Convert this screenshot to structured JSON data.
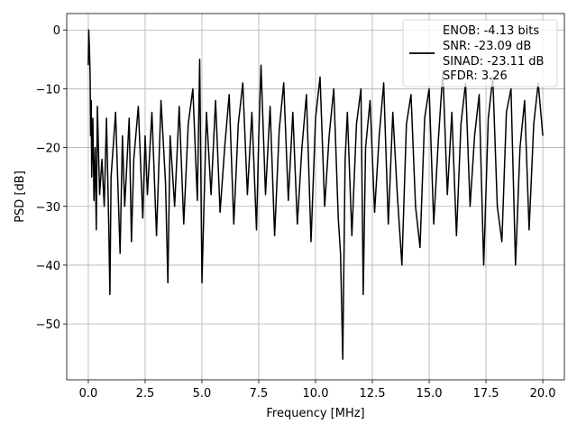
{
  "chart_data": {
    "type": "line",
    "title": "",
    "xlabel": "Frequency [MHz]",
    "ylabel": "PSD [dB]",
    "xlim": [
      -0.95,
      20.95
    ],
    "ylim": [
      -59.5,
      2.8
    ],
    "xticks": [
      0.0,
      2.5,
      5.0,
      7.5,
      10.0,
      12.5,
      15.0,
      17.5,
      20.0
    ],
    "xtick_labels": [
      "0.0",
      "2.5",
      "5.0",
      "7.5",
      "10.0",
      "12.5",
      "15.0",
      "17.5",
      "20.0"
    ],
    "yticks": [
      0,
      -10,
      -20,
      -30,
      -40,
      -50
    ],
    "ytick_labels": [
      "0",
      "−10",
      "−20",
      "−30",
      "−40",
      "−50"
    ],
    "grid": true,
    "legend": {
      "placement": "top-right",
      "entries": [
        "ENOB: -4.13 bits",
        "SNR: -23.09 dB",
        "SINAD: -23.11 dB",
        "SFDR: 3.26"
      ]
    },
    "series": [
      {
        "color": "#000000",
        "points_description_free": true,
        "x": [
          0.0,
          0.02,
          0.05,
          0.08,
          0.1,
          0.13,
          0.15,
          0.2,
          0.25,
          0.3,
          0.35,
          0.4,
          0.5,
          0.6,
          0.7,
          0.8,
          0.9,
          0.95,
          1.0,
          1.2,
          1.4,
          1.5,
          1.6,
          1.8,
          1.9,
          2.0,
          2.2,
          2.4,
          2.5,
          2.6,
          2.8,
          3.0,
          3.2,
          3.4,
          3.5,
          3.6,
          3.8,
          4.0,
          4.2,
          4.4,
          4.6,
          4.8,
          4.9,
          5.0,
          5.2,
          5.4,
          5.6,
          5.8,
          6.0,
          6.2,
          6.4,
          6.6,
          6.8,
          7.0,
          7.2,
          7.4,
          7.5,
          7.6,
          7.8,
          8.0,
          8.2,
          8.4,
          8.6,
          8.8,
          9.0,
          9.2,
          9.4,
          9.6,
          9.8,
          10.0,
          10.2,
          10.4,
          10.6,
          10.8,
          11.0,
          11.1,
          11.2,
          11.3,
          11.4,
          11.6,
          11.8,
          12.0,
          12.1,
          12.2,
          12.4,
          12.6,
          12.8,
          13.0,
          13.2,
          13.4,
          13.6,
          13.8,
          14.0,
          14.2,
          14.4,
          14.6,
          14.8,
          15.0,
          15.2,
          15.4,
          15.6,
          15.8,
          16.0,
          16.2,
          16.4,
          16.6,
          16.8,
          17.0,
          17.2,
          17.4,
          17.6,
          17.8,
          18.0,
          18.2,
          18.4,
          18.6,
          18.8,
          19.0,
          19.2,
          19.4,
          19.6,
          19.8,
          20.0
        ],
        "y": [
          -6.0,
          0.0,
          -3.0,
          -8.0,
          -18.0,
          -12.0,
          -25.0,
          -15.0,
          -29.0,
          -20.0,
          -34.0,
          -13.0,
          -28.0,
          -22.0,
          -30.0,
          -15.0,
          -33.0,
          -45.0,
          -25.0,
          -14.0,
          -38.0,
          -18.0,
          -30.0,
          -15.0,
          -36.0,
          -22.0,
          -13.0,
          -32.0,
          -18.0,
          -28.0,
          -14.0,
          -35.0,
          -12.0,
          -26.0,
          -43.0,
          -18.0,
          -30.0,
          -13.0,
          -33.0,
          -16.0,
          -10.0,
          -29.0,
          -5.0,
          -43.0,
          -14.0,
          -28.0,
          -12.0,
          -31.0,
          -20.0,
          -11.0,
          -33.0,
          -16.0,
          -9.0,
          -28.0,
          -14.0,
          -34.0,
          -18.0,
          -6.0,
          -28.0,
          -13.0,
          -35.0,
          -17.0,
          -9.0,
          -29.0,
          -14.0,
          -33.0,
          -20.0,
          -11.0,
          -36.0,
          -15.0,
          -8.0,
          -30.0,
          -18.0,
          -10.0,
          -32.0,
          -38.0,
          -56.0,
          -22.0,
          -14.0,
          -35.0,
          -16.0,
          -10.0,
          -45.0,
          -20.0,
          -12.0,
          -31.0,
          -18.0,
          -9.0,
          -33.0,
          -14.0,
          -28.0,
          -40.0,
          -16.0,
          -11.0,
          -30.0,
          -37.0,
          -15.0,
          -10.0,
          -33.0,
          -19.0,
          -7.0,
          -28.0,
          -14.0,
          -35.0,
          -16.0,
          -9.0,
          -30.0,
          -18.0,
          -11.0,
          -40.0,
          -15.0,
          -8.0,
          -30.0,
          -36.0,
          -14.0,
          -10.0,
          -40.0,
          -20.0,
          -12.0,
          -34.0,
          -16.0,
          -9.0,
          -18.0
        ]
      }
    ]
  }
}
